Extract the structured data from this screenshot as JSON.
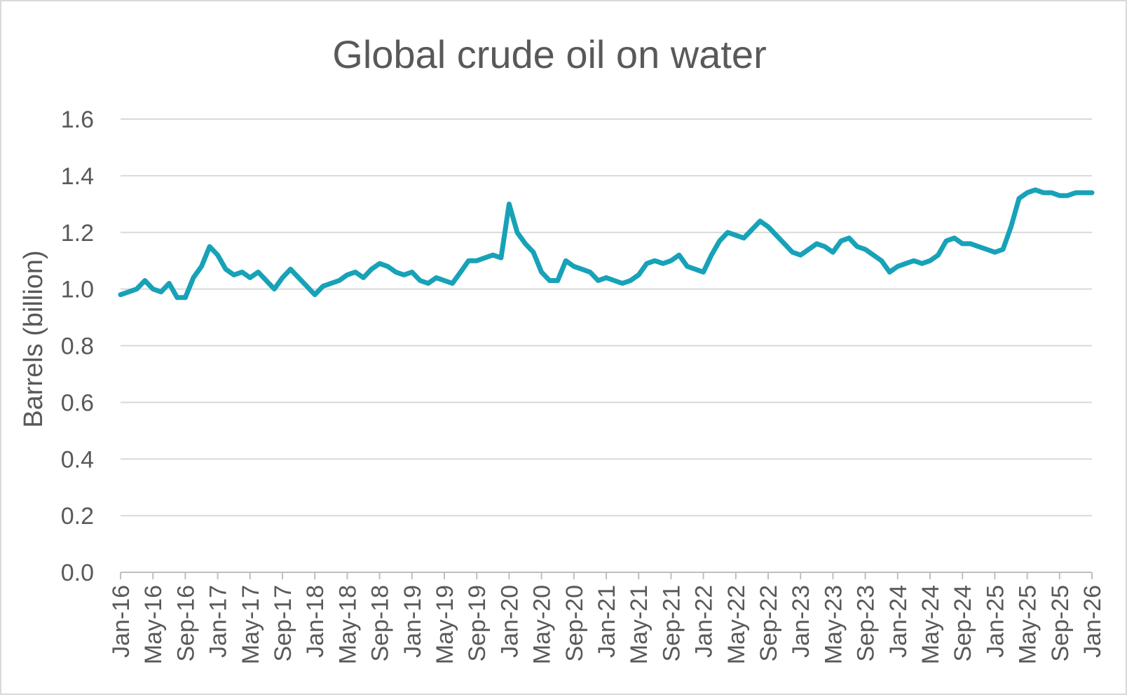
{
  "chart_data": {
    "type": "line",
    "title": "Global crude oil on water",
    "xlabel": "",
    "ylabel": "Barrels (billion)",
    "ylim": [
      0,
      1.6
    ],
    "yticks": [
      "0.0",
      "0.2",
      "0.4",
      "0.6",
      "0.8",
      "1.0",
      "1.2",
      "1.4",
      "1.6"
    ],
    "grid": true,
    "x_tick_labels": [
      "Jan-16",
      "May-16",
      "Sep-16",
      "Jan-17",
      "May-17",
      "Sep-17",
      "Jan-18",
      "May-18",
      "Sep-18",
      "Jan-19",
      "May-19",
      "Sep-19",
      "Jan-20",
      "May-20",
      "Sep-20",
      "Jan-21",
      "May-21",
      "Sep-21",
      "Jan-22",
      "May-22",
      "Sep-22",
      "Jan-23",
      "May-23",
      "Sep-23",
      "Jan-24",
      "May-24",
      "Sep-24",
      "Jan-25",
      "May-25",
      "Sep-25",
      "Jan-26"
    ],
    "line_color": "#17a2b8",
    "series": [
      {
        "name": "Crude oil on water",
        "x_month_index": [
          0,
          1,
          2,
          3,
          4,
          5,
          6,
          7,
          8,
          9,
          10,
          11,
          12,
          13,
          14,
          15,
          16,
          17,
          18,
          19,
          20,
          21,
          22,
          23,
          24,
          25,
          26,
          27,
          28,
          29,
          30,
          31,
          32,
          33,
          34,
          35,
          36,
          37,
          38,
          39,
          40,
          41,
          42,
          43,
          44,
          45,
          46,
          47,
          48,
          49,
          50,
          51,
          52,
          53,
          54,
          55,
          56,
          57,
          58,
          59,
          60,
          61,
          62,
          63,
          64,
          65,
          66,
          67,
          68,
          69,
          70,
          71,
          72,
          73,
          74,
          75,
          76,
          77,
          78,
          79,
          80,
          81,
          82,
          83,
          84,
          85,
          86,
          87,
          88,
          89,
          90,
          91,
          92,
          93,
          94,
          95,
          96,
          97,
          98,
          99,
          100,
          101,
          102,
          103,
          104,
          105,
          106,
          107,
          108,
          109,
          110,
          111,
          112,
          113,
          114,
          115,
          116,
          117,
          118,
          119,
          120
        ],
        "values": [
          0.98,
          0.99,
          1.0,
          1.03,
          1.0,
          0.99,
          1.02,
          0.97,
          0.97,
          1.04,
          1.08,
          1.15,
          1.12,
          1.07,
          1.05,
          1.06,
          1.04,
          1.06,
          1.03,
          1.0,
          1.04,
          1.07,
          1.04,
          1.01,
          0.98,
          1.01,
          1.02,
          1.03,
          1.05,
          1.06,
          1.04,
          1.07,
          1.09,
          1.08,
          1.06,
          1.05,
          1.06,
          1.03,
          1.02,
          1.04,
          1.03,
          1.02,
          1.06,
          1.1,
          1.1,
          1.11,
          1.12,
          1.11,
          1.3,
          1.2,
          1.16,
          1.13,
          1.06,
          1.03,
          1.03,
          1.1,
          1.08,
          1.07,
          1.06,
          1.03,
          1.04,
          1.03,
          1.02,
          1.03,
          1.05,
          1.09,
          1.1,
          1.09,
          1.1,
          1.12,
          1.08,
          1.07,
          1.06,
          1.12,
          1.17,
          1.2,
          1.19,
          1.18,
          1.21,
          1.24,
          1.22,
          1.19,
          1.16,
          1.13,
          1.12,
          1.14,
          1.16,
          1.15,
          1.13,
          1.17,
          1.18,
          1.15,
          1.14,
          1.12,
          1.1,
          1.06,
          1.08,
          1.09,
          1.1,
          1.09,
          1.1,
          1.12,
          1.17,
          1.18,
          1.16,
          1.16,
          1.15,
          1.14,
          1.13,
          1.14,
          1.22,
          1.32,
          1.34,
          1.35,
          1.34,
          1.34,
          1.33,
          1.33,
          1.34,
          1.34,
          1.34
        ]
      }
    ]
  }
}
